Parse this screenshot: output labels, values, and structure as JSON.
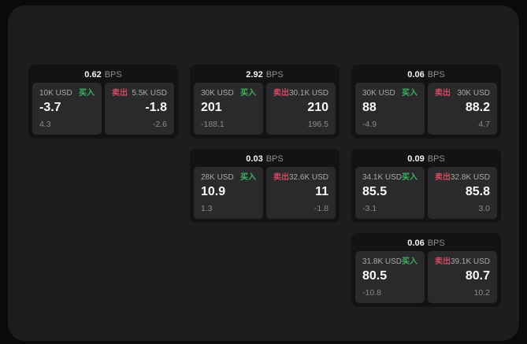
{
  "labels": {
    "buy": "买入",
    "sell": "卖出",
    "bps_unit": "BPS"
  },
  "colors": {
    "buy_accent": "#3cb25f",
    "sell_accent": "#cf4a60",
    "board_bg": "#1d1d1f",
    "card_bg": "#131314",
    "panel_bg": "#2a2a2c"
  },
  "cards": [
    {
      "bps": "0.62",
      "buy": {
        "amount": "10K USD",
        "price": "-3.7",
        "delta": "4.3"
      },
      "sell": {
        "amount": "5.5K USD",
        "price": "-1.8",
        "delta": "-2.6"
      }
    },
    {
      "bps": "2.92",
      "buy": {
        "amount": "30K USD",
        "price": "201",
        "delta": "-188.1"
      },
      "sell": {
        "amount": "30.1K USD",
        "price": "210",
        "delta": "196.5"
      }
    },
    {
      "bps": "0.06",
      "buy": {
        "amount": "30K USD",
        "price": "88",
        "delta": "-4.9"
      },
      "sell": {
        "amount": "30K USD",
        "price": "88.2",
        "delta": "4.7"
      }
    },
    {
      "bps": "0.03",
      "buy": {
        "amount": "28K USD",
        "price": "10.9",
        "delta": "1.3"
      },
      "sell": {
        "amount": "32.6K USD",
        "price": "11",
        "delta": "-1.8"
      }
    },
    {
      "bps": "0.09",
      "buy": {
        "amount": "34.1K USD",
        "price": "85.5",
        "delta": "-3.1"
      },
      "sell": {
        "amount": "32.8K USD",
        "price": "85.8",
        "delta": "3.0"
      }
    },
    {
      "bps": "0.06",
      "buy": {
        "amount": "31.8K USD",
        "price": "80.5",
        "delta": "-10.8"
      },
      "sell": {
        "amount": "39.1K USD",
        "price": "80.7",
        "delta": "10.2"
      }
    }
  ]
}
